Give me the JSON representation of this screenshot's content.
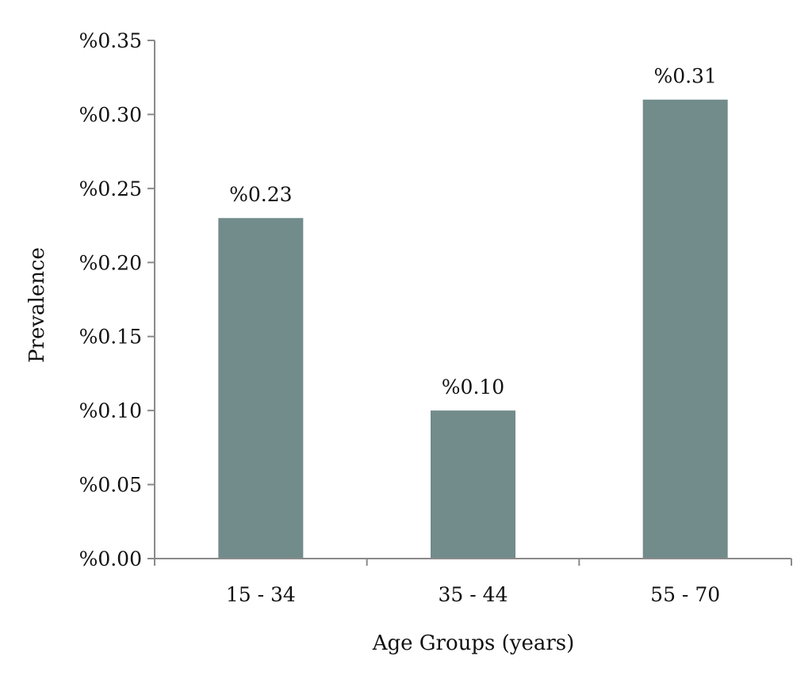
{
  "chart_data": {
    "type": "bar",
    "categories": [
      "15 - 34",
      "35 - 44",
      "55 - 70"
    ],
    "values": [
      0.23,
      0.1,
      0.31
    ],
    "data_labels": [
      "%0.23",
      "%0.10",
      "%0.31"
    ],
    "title": "",
    "xlabel": "Age Groups (years)",
    "ylabel": "Prevalence",
    "ylim": [
      0,
      0.35
    ],
    "y_ticks": [
      0.0,
      0.05,
      0.1,
      0.15,
      0.2,
      0.25,
      0.3,
      0.35
    ],
    "y_tick_labels": [
      "%0.00",
      "%0.05",
      "%0.10",
      "%0.15",
      "%0.20",
      "%0.25",
      "%0.30",
      "%0.35"
    ],
    "grid": false,
    "legend": "none",
    "colors": {
      "bar": "#728b8b",
      "axis": "#8a8a8a",
      "text": "#111111"
    }
  }
}
